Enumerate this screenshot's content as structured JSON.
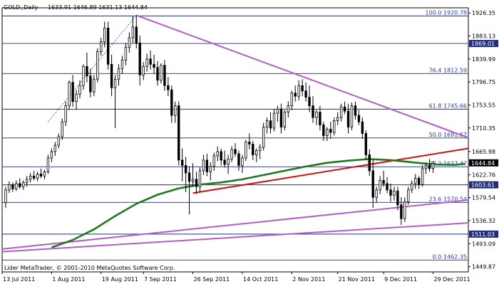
{
  "header": {
    "symbol": "GOLD,,Daily",
    "ohlc": "1633.91 1646.89 1631.13 1644.84"
  },
  "copyright": "Lider MetaTrader, © 2001-2010 MetaQuotes Software Corp.",
  "colors": {
    "background": "#ffffff",
    "candle": "#000000",
    "grid_line": "#1f2d7a",
    "moving_average": "#1f7a1f",
    "support_line": "#cc1111",
    "trend_line": "#b35ec8",
    "fib_dotted": "#2a3cb0",
    "axis_text": "#000000",
    "fib_text": "#2a3cb0",
    "price_tag_bg": "#1f2d7a",
    "price_tag_text": "#ffffff",
    "current_tag_bg": "#000000"
  },
  "chart_data": {
    "type": "candlestick",
    "y_axis": {
      "range": [
        1440,
        1936
      ],
      "tick_labels": [
        "1926.35",
        "1883.13",
        "1839.99",
        "1796.75",
        "1753.55",
        "1710.35",
        "1665.98",
        "1622.76",
        "1579.54",
        "1536.32",
        "1493.09",
        "1449.87"
      ],
      "tick_values": [
        1926.35,
        1883.13,
        1839.99,
        1796.75,
        1753.55,
        1710.35,
        1665.98,
        1622.76,
        1579.54,
        1536.32,
        1493.09,
        1449.87
      ]
    },
    "x_axis": {
      "range": [
        0,
        132
      ],
      "date_labels": [
        {
          "label": "13 Jul 2011",
          "index": 0
        },
        {
          "label": "1 Aug 2011",
          "index": 14
        },
        {
          "label": "19 Aug 2011",
          "index": 28
        },
        {
          "label": "7 Sep 2011",
          "index": 40
        },
        {
          "label": "26 Sep 2011",
          "index": 54
        },
        {
          "label": "14 Oct 2011",
          "index": 68
        },
        {
          "label": "2 Nov 2011",
          "index": 82
        },
        {
          "label": "21 Nov 2011",
          "index": 95
        },
        {
          "label": "9 Dec 2011",
          "index": 108
        },
        {
          "label": "29 Dec 2011",
          "index": 122
        }
      ]
    },
    "horizontal_levels": [
      {
        "value": 1920.78,
        "label": "100.0 1920.78",
        "style": "fib"
      },
      {
        "value": 1869.01,
        "label": "1869.01",
        "style": "tag"
      },
      {
        "value": 1812.59,
        "label": "76.4 1812.59",
        "style": "fib"
      },
      {
        "value": 1745.66,
        "label": "61.8 1745.66",
        "style": "fib"
      },
      {
        "value": 1691.57,
        "label": "50.0 1691.57",
        "style": "fib"
      },
      {
        "value": 1637.47,
        "label": "38.2 1637.47",
        "style": "fib"
      },
      {
        "value": 1603.61,
        "label": "1603.61",
        "style": "tag"
      },
      {
        "value": 1570.54,
        "label": "23.6 1570.54",
        "style": "fib"
      },
      {
        "value": 1511.03,
        "label": "1511.03",
        "style": "tag"
      },
      {
        "value": 1462.35,
        "label": "0.0 1462.35",
        "style": "fib"
      }
    ],
    "current_price": {
      "value": 1644.84,
      "label": "1644.84"
    },
    "trend_lines": [
      {
        "name": "resistance",
        "color": "#b35ec8",
        "from": [
          38,
          1922
        ],
        "to": [
          132,
          1692
        ]
      },
      {
        "name": "support-upper",
        "color": "#b35ec8",
        "from": [
          0,
          1483
        ],
        "to": [
          132,
          1575
        ]
      },
      {
        "name": "support-lower",
        "color": "#b35ec8",
        "from": [
          0,
          1478
        ],
        "to": [
          132,
          1532
        ]
      },
      {
        "name": "red-support",
        "color": "#cc1111",
        "from": [
          54,
          1588
        ],
        "to": [
          132,
          1672
        ]
      }
    ],
    "fib_line": {
      "from": [
        13,
        1722
      ],
      "to": [
        38,
        1922
      ]
    },
    "moving_average": [
      [
        14,
        1486
      ],
      [
        20,
        1500
      ],
      [
        26,
        1520
      ],
      [
        32,
        1545
      ],
      [
        38,
        1568
      ],
      [
        44,
        1585
      ],
      [
        50,
        1597
      ],
      [
        56,
        1604
      ],
      [
        62,
        1608
      ],
      [
        68,
        1614
      ],
      [
        74,
        1622
      ],
      [
        80,
        1630
      ],
      [
        86,
        1638
      ],
      [
        92,
        1645
      ],
      [
        98,
        1649
      ],
      [
        104,
        1652
      ],
      [
        110,
        1650
      ],
      [
        116,
        1646
      ],
      [
        122,
        1642
      ],
      [
        128,
        1641
      ],
      [
        131,
        1643
      ]
    ],
    "candles": [
      [
        1,
        1570,
        1600,
        1560,
        1594
      ],
      [
        2,
        1594,
        1610,
        1588,
        1604
      ],
      [
        3,
        1604,
        1608,
        1590,
        1596
      ],
      [
        4,
        1596,
        1612,
        1592,
        1606
      ],
      [
        5,
        1606,
        1616,
        1596,
        1600
      ],
      [
        6,
        1600,
        1612,
        1594,
        1608
      ],
      [
        7,
        1608,
        1620,
        1600,
        1614
      ],
      [
        8,
        1614,
        1626,
        1608,
        1620
      ],
      [
        9,
        1620,
        1630,
        1612,
        1616
      ],
      [
        10,
        1616,
        1628,
        1610,
        1624
      ],
      [
        11,
        1624,
        1634,
        1616,
        1620
      ],
      [
        12,
        1620,
        1632,
        1614,
        1628
      ],
      [
        13,
        1628,
        1660,
        1624,
        1654
      ],
      [
        14,
        1654,
        1672,
        1646,
        1666
      ],
      [
        15,
        1666,
        1684,
        1658,
        1678
      ],
      [
        16,
        1678,
        1700,
        1672,
        1694
      ],
      [
        17,
        1694,
        1728,
        1688,
        1722
      ],
      [
        18,
        1722,
        1760,
        1714,
        1752
      ],
      [
        19,
        1752,
        1800,
        1744,
        1796
      ],
      [
        20,
        1796,
        1810,
        1750,
        1760
      ],
      [
        21,
        1760,
        1782,
        1744,
        1774
      ],
      [
        22,
        1774,
        1800,
        1766,
        1790
      ],
      [
        23,
        1790,
        1830,
        1782,
        1826
      ],
      [
        24,
        1826,
        1852,
        1796,
        1808
      ],
      [
        25,
        1808,
        1822,
        1768,
        1778
      ],
      [
        26,
        1778,
        1810,
        1770,
        1802
      ],
      [
        27,
        1802,
        1860,
        1796,
        1854
      ],
      [
        28,
        1854,
        1880,
        1846,
        1872
      ],
      [
        29,
        1872,
        1910,
        1862,
        1898
      ],
      [
        30,
        1898,
        1910,
        1820,
        1830
      ],
      [
        31,
        1830,
        1848,
        1770,
        1786
      ],
      [
        32,
        1786,
        1810,
        1710,
        1802
      ],
      [
        33,
        1802,
        1830,
        1790,
        1822
      ],
      [
        34,
        1822,
        1846,
        1812,
        1838
      ],
      [
        35,
        1838,
        1870,
        1828,
        1862
      ],
      [
        36,
        1862,
        1890,
        1852,
        1880
      ],
      [
        37,
        1880,
        1920,
        1870,
        1900
      ],
      [
        38,
        1900,
        1922,
        1860,
        1870
      ],
      [
        39,
        1870,
        1884,
        1790,
        1810
      ],
      [
        40,
        1810,
        1834,
        1800,
        1826
      ],
      [
        41,
        1826,
        1850,
        1816,
        1840
      ],
      [
        42,
        1840,
        1856,
        1820,
        1830
      ],
      [
        43,
        1830,
        1848,
        1812,
        1824
      ],
      [
        44,
        1824,
        1836,
        1790,
        1800
      ],
      [
        45,
        1800,
        1832,
        1794,
        1828
      ],
      [
        46,
        1828,
        1838,
        1780,
        1790
      ],
      [
        47,
        1790,
        1806,
        1770,
        1782
      ],
      [
        48,
        1782,
        1790,
        1720,
        1734
      ],
      [
        49,
        1734,
        1760,
        1720,
        1752
      ],
      [
        50,
        1752,
        1760,
        1640,
        1650
      ],
      [
        51,
        1650,
        1672,
        1610,
        1640
      ],
      [
        52,
        1640,
        1656,
        1590,
        1626
      ],
      [
        53,
        1626,
        1638,
        1548,
        1610
      ],
      [
        54,
        1610,
        1644,
        1600,
        1614
      ],
      [
        55,
        1614,
        1628,
        1586,
        1600
      ],
      [
        56,
        1600,
        1636,
        1590,
        1630
      ],
      [
        57,
        1630,
        1660,
        1622,
        1650
      ],
      [
        58,
        1650,
        1662,
        1620,
        1628
      ],
      [
        59,
        1628,
        1646,
        1612,
        1638
      ],
      [
        60,
        1638,
        1664,
        1630,
        1658
      ],
      [
        61,
        1658,
        1676,
        1648,
        1666
      ],
      [
        62,
        1666,
        1672,
        1640,
        1650
      ],
      [
        63,
        1650,
        1668,
        1636,
        1642
      ],
      [
        64,
        1642,
        1660,
        1624,
        1652
      ],
      [
        65,
        1652,
        1676,
        1646,
        1670
      ],
      [
        66,
        1670,
        1682,
        1656,
        1662
      ],
      [
        67,
        1662,
        1668,
        1630,
        1640
      ],
      [
        68,
        1640,
        1660,
        1626,
        1654
      ],
      [
        69,
        1654,
        1688,
        1648,
        1684
      ],
      [
        70,
        1684,
        1700,
        1670,
        1680
      ],
      [
        71,
        1680,
        1686,
        1650,
        1660
      ],
      [
        72,
        1660,
        1672,
        1646,
        1668
      ],
      [
        73,
        1668,
        1680,
        1652,
        1674
      ],
      [
        74,
        1674,
        1720,
        1668,
        1712
      ],
      [
        75,
        1712,
        1730,
        1700,
        1724
      ],
      [
        76,
        1724,
        1740,
        1700,
        1710
      ],
      [
        77,
        1710,
        1746,
        1704,
        1738
      ],
      [
        78,
        1738,
        1752,
        1722,
        1746
      ],
      [
        79,
        1746,
        1756,
        1700,
        1712
      ],
      [
        80,
        1712,
        1744,
        1706,
        1740
      ],
      [
        81,
        1740,
        1760,
        1730,
        1752
      ],
      [
        82,
        1752,
        1780,
        1744,
        1776
      ],
      [
        83,
        1776,
        1790,
        1760,
        1770
      ],
      [
        84,
        1770,
        1800,
        1762,
        1790
      ],
      [
        85,
        1790,
        1802,
        1770,
        1780
      ],
      [
        86,
        1780,
        1796,
        1760,
        1768
      ],
      [
        87,
        1768,
        1790,
        1740,
        1752
      ],
      [
        88,
        1752,
        1770,
        1720,
        1730
      ],
      [
        89,
        1730,
        1744,
        1716,
        1740
      ],
      [
        90,
        1740,
        1752,
        1706,
        1716
      ],
      [
        91,
        1716,
        1722,
        1686,
        1696
      ],
      [
        92,
        1696,
        1712,
        1686,
        1708
      ],
      [
        93,
        1708,
        1722,
        1690,
        1702
      ],
      [
        94,
        1702,
        1730,
        1696,
        1724
      ],
      [
        95,
        1724,
        1740,
        1716,
        1730
      ],
      [
        96,
        1730,
        1756,
        1722,
        1750
      ],
      [
        97,
        1750,
        1760,
        1736,
        1742
      ],
      [
        98,
        1742,
        1756,
        1700,
        1712
      ],
      [
        99,
        1712,
        1758,
        1706,
        1752
      ],
      [
        100,
        1752,
        1760,
        1726,
        1734
      ],
      [
        101,
        1734,
        1744,
        1716,
        1722
      ],
      [
        102,
        1722,
        1730,
        1690,
        1700
      ],
      [
        103,
        1700,
        1706,
        1650,
        1660
      ],
      [
        104,
        1660,
        1670,
        1620,
        1630
      ],
      [
        105,
        1630,
        1650,
        1560,
        1580
      ],
      [
        106,
        1580,
        1600,
        1570,
        1594
      ],
      [
        107,
        1594,
        1620,
        1586,
        1612
      ],
      [
        108,
        1612,
        1630,
        1600,
        1606
      ],
      [
        109,
        1606,
        1618,
        1588,
        1594
      ],
      [
        110,
        1594,
        1606,
        1572,
        1584
      ],
      [
        111,
        1584,
        1600,
        1574,
        1592
      ],
      [
        112,
        1592,
        1600,
        1556,
        1566
      ],
      [
        113,
        1566,
        1580,
        1528,
        1540
      ],
      [
        114,
        1540,
        1580,
        1534,
        1572
      ],
      [
        115,
        1572,
        1600,
        1566,
        1594
      ],
      [
        116,
        1594,
        1612,
        1588,
        1606
      ],
      [
        117,
        1606,
        1624,
        1596,
        1616
      ],
      [
        118,
        1616,
        1620,
        1596,
        1604
      ],
      [
        119,
        1604,
        1640,
        1600,
        1634
      ],
      [
        120,
        1634,
        1646,
        1624,
        1640
      ],
      [
        121,
        1640,
        1652,
        1628,
        1634
      ],
      [
        122,
        1634,
        1648,
        1626,
        1644
      ]
    ]
  }
}
